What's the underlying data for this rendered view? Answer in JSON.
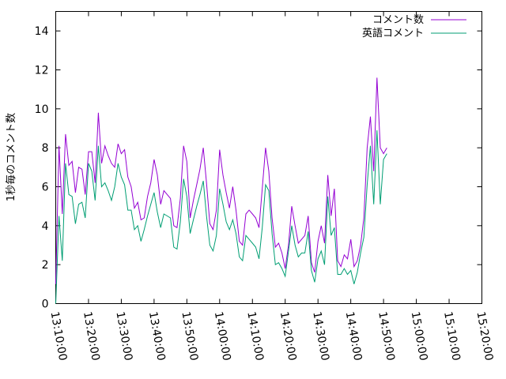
{
  "chart_data": {
    "type": "line",
    "title": "",
    "xlabel": "",
    "ylabel": "1秒毎のコメント数",
    "ylim": [
      0,
      15
    ],
    "yticks": [
      0,
      2,
      4,
      6,
      8,
      10,
      12,
      14
    ],
    "xticks": [
      "13:10:00",
      "13:20:00",
      "13:30:00",
      "13:40:00",
      "13:50:00",
      "14:00:00",
      "14:10:00",
      "14:20:00",
      "14:30:00",
      "14:40:00",
      "14:50:00",
      "15:00:00",
      "15:10:00",
      "15:20:00"
    ],
    "xlim": [
      "13:10:00",
      "15:20:00"
    ],
    "grid": false,
    "legend": "top-right",
    "x_interval_seconds": 60,
    "x_start": "13:10:00",
    "series": [
      {
        "name": "コメント数",
        "color": "#9400d3",
        "values": [
          1.0,
          8.1,
          4.6,
          8.7,
          7.1,
          7.3,
          5.7,
          7.0,
          6.9,
          5.6,
          7.8,
          7.8,
          6.2,
          9.8,
          7.2,
          8.1,
          7.6,
          7.2,
          7.0,
          8.2,
          7.7,
          7.9,
          6.5,
          6.0,
          4.9,
          5.2,
          4.3,
          4.4,
          5.5,
          6.2,
          7.4,
          6.6,
          5.1,
          5.8,
          5.6,
          5.4,
          4.0,
          3.9,
          5.4,
          8.1,
          7.3,
          4.4,
          5.3,
          6.1,
          6.9,
          8.0,
          6.2,
          4.1,
          3.8,
          4.8,
          7.9,
          6.6,
          5.7,
          4.9,
          6.0,
          4.8,
          3.2,
          3.0,
          4.6,
          4.8,
          4.6,
          4.4,
          3.9,
          5.9,
          8.0,
          6.8,
          4.4,
          2.9,
          3.1,
          2.6,
          1.8,
          3.0,
          5.0,
          4.0,
          3.1,
          3.3,
          3.5,
          4.5,
          2.1,
          1.6,
          3.2,
          4.0,
          3.1,
          6.6,
          4.5,
          5.9,
          2.2,
          1.9,
          2.5,
          2.3,
          3.3,
          1.9,
          2.2,
          3.0,
          4.4,
          8.0,
          9.6,
          6.8,
          11.6,
          8.0,
          7.7,
          8.0
        ]
      },
      {
        "name": "英語コメント",
        "color": "#009e73",
        "values": [
          0.0,
          4.5,
          2.2,
          7.2,
          5.6,
          5.5,
          4.1,
          5.1,
          5.2,
          4.4,
          7.2,
          6.8,
          5.3,
          8.1,
          6.0,
          6.2,
          5.8,
          5.3,
          6.0,
          7.2,
          6.5,
          6.1,
          4.8,
          4.8,
          3.8,
          4.0,
          3.2,
          3.8,
          4.5,
          5.1,
          5.7,
          4.7,
          3.9,
          4.6,
          4.5,
          4.4,
          2.9,
          2.8,
          4.2,
          6.4,
          5.5,
          3.6,
          4.3,
          5.0,
          5.6,
          6.3,
          4.5,
          3.0,
          2.7,
          3.5,
          5.9,
          5.1,
          4.2,
          3.8,
          4.3,
          3.6,
          2.4,
          2.2,
          3.5,
          3.3,
          3.1,
          2.9,
          2.3,
          3.9,
          6.1,
          5.8,
          3.6,
          2.0,
          2.1,
          1.8,
          1.4,
          2.7,
          4.0,
          3.0,
          2.4,
          2.6,
          2.6,
          3.7,
          1.7,
          1.1,
          2.3,
          2.7,
          2.0,
          5.5,
          3.5,
          3.9,
          1.5,
          1.5,
          1.8,
          1.5,
          1.7,
          1.0,
          1.6,
          2.6,
          3.4,
          6.1,
          8.1,
          5.1,
          8.9,
          5.1,
          7.4,
          7.7
        ]
      }
    ]
  }
}
